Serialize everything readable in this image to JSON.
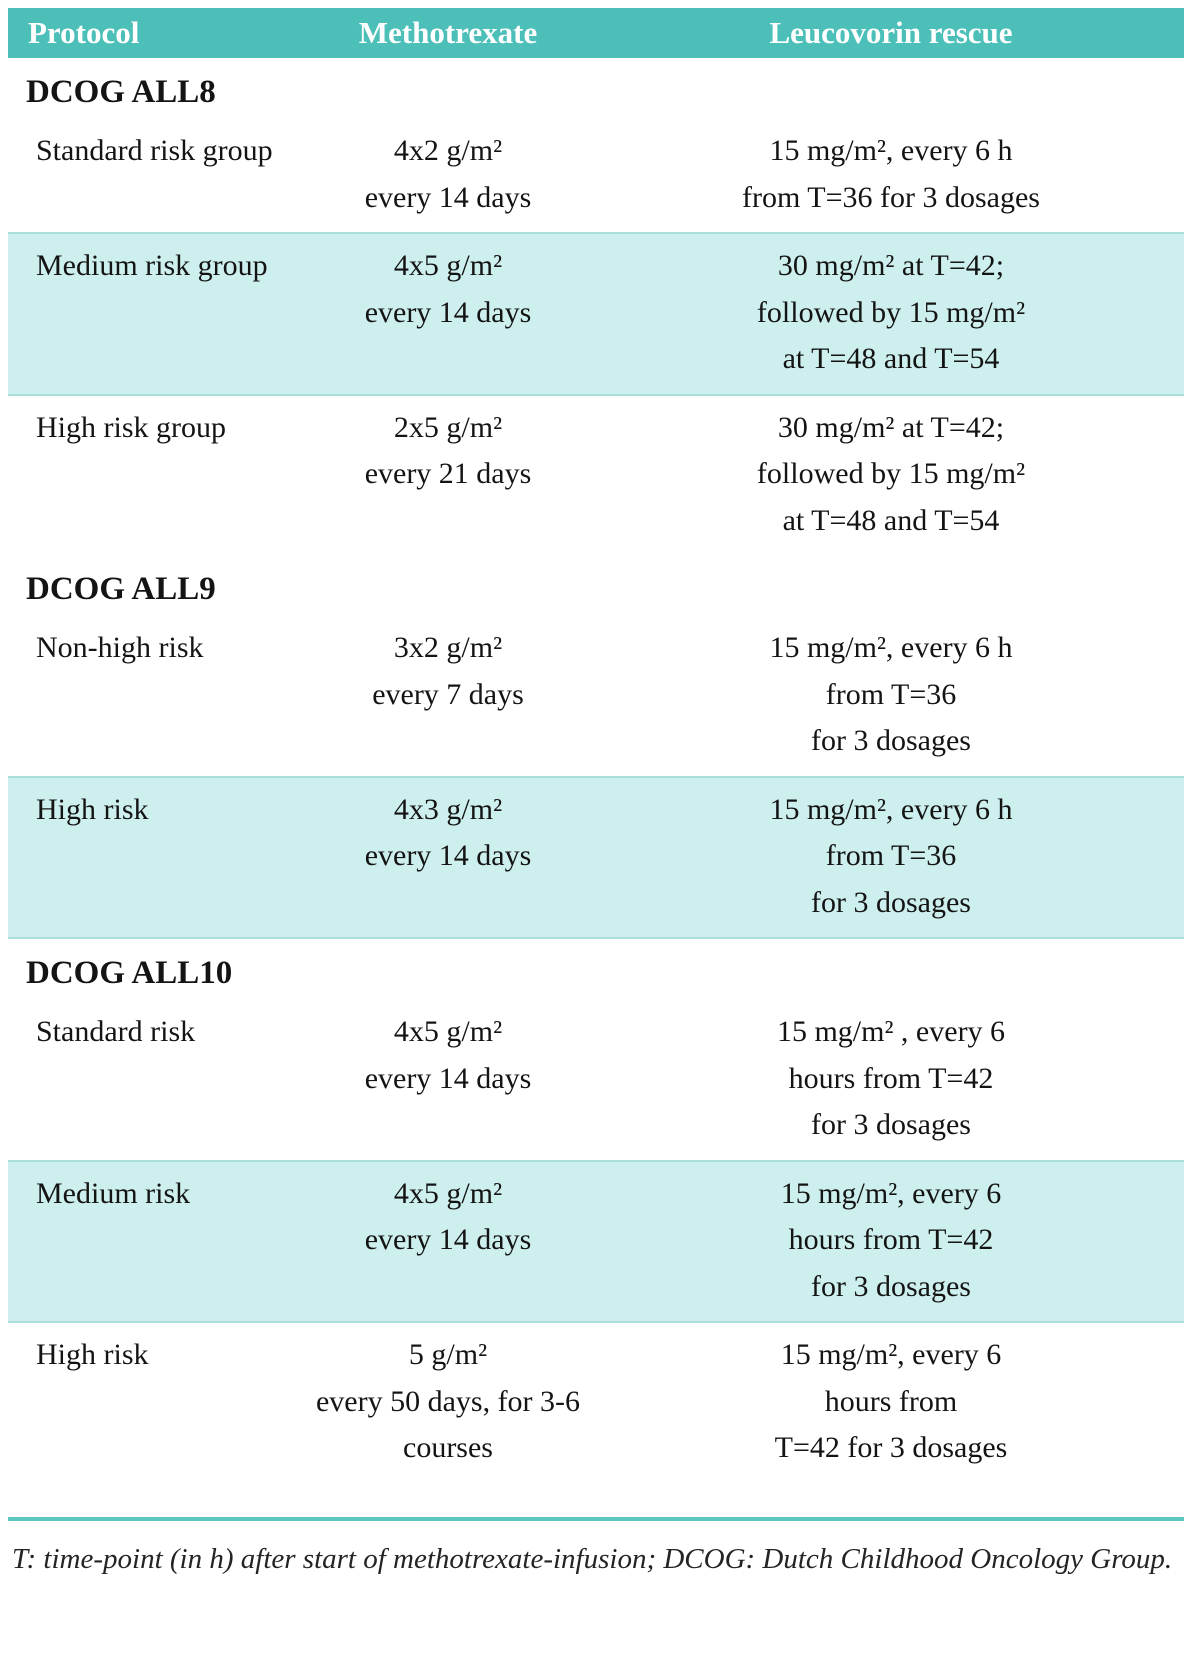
{
  "table": {
    "headers": [
      "Protocol",
      "Methotrexate",
      "Leucovorin rescue"
    ],
    "colors": {
      "header_bg": "#4CBFB9",
      "header_text": "#FFFFFF",
      "shaded_row_bg": "#CDEFED",
      "divider": "#5EC6C0"
    },
    "sections": [
      {
        "title": "DCOG ALL8",
        "rows": [
          {
            "protocol": "Standard risk group",
            "methotrexate": "4x2 g/m²\nevery 14 days",
            "leucovorin": "15 mg/m², every 6 h\nfrom T=36 for 3 dosages",
            "shaded": false
          },
          {
            "protocol": "Medium risk group",
            "methotrexate": "4x5 g/m²\nevery 14 days",
            "leucovorin": "30 mg/m² at T=42;\nfollowed by 15 mg/m²\nat T=48 and T=54",
            "shaded": true
          },
          {
            "protocol": "High risk group",
            "methotrexate": "2x5 g/m²\nevery 21 days",
            "leucovorin": "30 mg/m² at T=42;\nfollowed by 15 mg/m²\nat T=48 and T=54",
            "shaded": false
          }
        ]
      },
      {
        "title": "DCOG ALL9",
        "rows": [
          {
            "protocol": "Non-high risk",
            "methotrexate": "3x2 g/m²\nevery 7 days",
            "leucovorin": "15 mg/m², every 6 h\nfrom T=36\nfor 3 dosages",
            "shaded": false
          },
          {
            "protocol": "High risk",
            "methotrexate": "4x3 g/m²\nevery 14 days",
            "leucovorin": "15 mg/m², every 6 h\nfrom T=36\nfor 3 dosages",
            "shaded": true
          }
        ]
      },
      {
        "title": "DCOG ALL10",
        "rows": [
          {
            "protocol": "Standard risk",
            "methotrexate": "4x5 g/m²\nevery 14 days",
            "leucovorin": "15 mg/m² , every 6\nhours from T=42\nfor 3 dosages",
            "shaded": false
          },
          {
            "protocol": "Medium risk",
            "methotrexate": "4x5 g/m²\nevery 14 days",
            "leucovorin": "15 mg/m², every 6\nhours from T=42\nfor 3 dosages",
            "shaded": true
          },
          {
            "protocol": "High risk",
            "methotrexate": "5 g/m²\nevery 50 days, for 3-6\ncourses",
            "leucovorin": "15 mg/m², every 6\nhours from\nT=42 for 3 dosages",
            "shaded": false
          }
        ]
      }
    ],
    "footnote": "T: time-point (in h) after start of methotrexate-infusion; DCOG: Dutch Childhood Oncology Group."
  }
}
